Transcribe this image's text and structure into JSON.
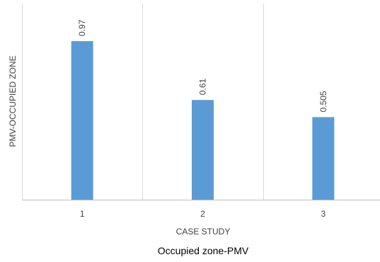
{
  "chart_data": {
    "type": "bar",
    "categories": [
      "1",
      "2",
      "3"
    ],
    "values": [
      0.97,
      0.61,
      0.505
    ],
    "data_labels": [
      "0.97",
      "0.61",
      "0.505"
    ],
    "title": "Occupied zone-PMV",
    "xlabel": "CASE STUDY",
    "ylabel": "PMV-OCCUPIED ZONE",
    "ylim": [
      0,
      1.2
    ],
    "grid": "vertical",
    "legend": "none",
    "bar_color": "#5b9bd5",
    "grid_color": "#d9d9d9",
    "axis_color": "#bfbfbf"
  }
}
